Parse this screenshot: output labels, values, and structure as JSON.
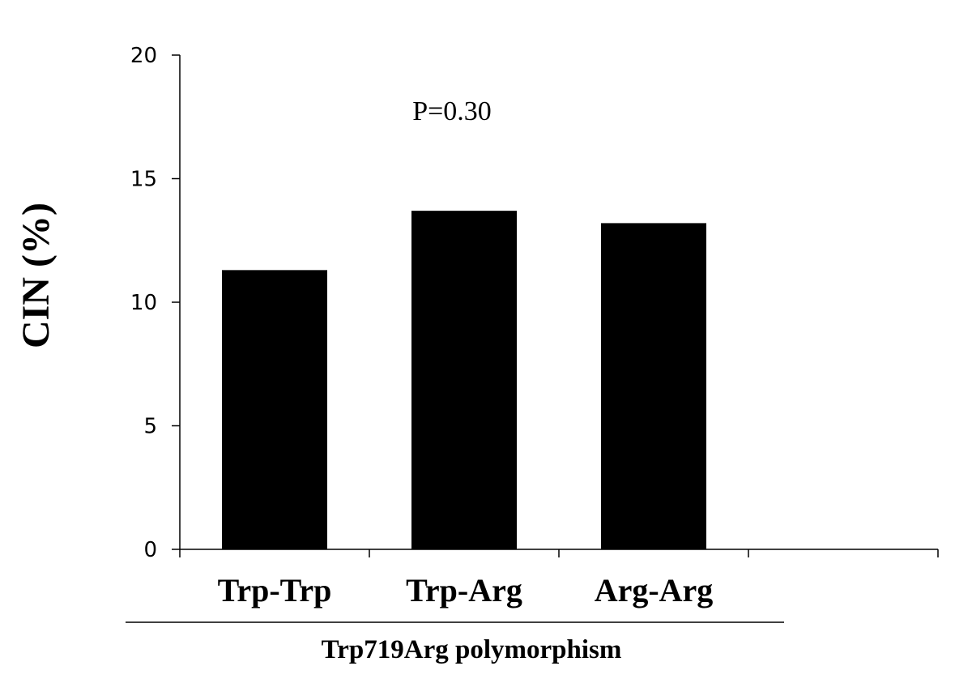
{
  "chart_data": {
    "type": "bar",
    "categories": [
      "Trp-Trp",
      "Trp-Arg",
      "Arg-Arg"
    ],
    "values": [
      11.3,
      13.7,
      13.2
    ],
    "ylabel": "CIN (%)",
    "group_label": "Trp719Arg polymorphism",
    "annotation": "P=0.30",
    "ylim": [
      0,
      20
    ],
    "yticks": [
      "0",
      "5",
      "10",
      "15",
      "20"
    ],
    "bar_color": "#000000",
    "grid": false
  }
}
